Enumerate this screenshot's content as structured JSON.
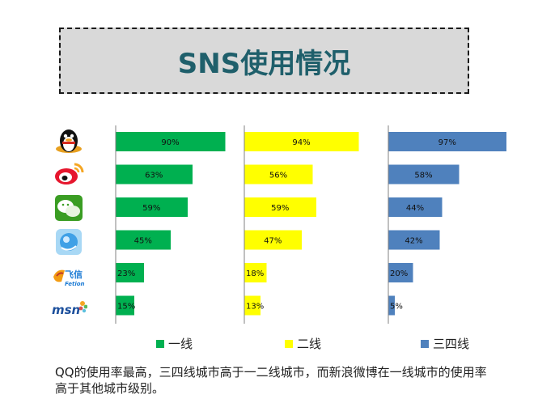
{
  "title": "SNS使用情况",
  "chart_data": {
    "type": "bar",
    "orientation": "horizontal",
    "categories": [
      "QQ",
      "新浪微博",
      "微信",
      "QQ空间",
      "飞信",
      "MSN"
    ],
    "series": [
      {
        "name": "一线",
        "color": "#00b050",
        "values": [
          90,
          63,
          59,
          45,
          23,
          15
        ]
      },
      {
        "name": "二线",
        "color": "#ffff00",
        "values": [
          94,
          56,
          59,
          47,
          18,
          13
        ]
      },
      {
        "name": "三四线",
        "color": "#4f81bd",
        "values": [
          97,
          58,
          44,
          42,
          20,
          5
        ]
      }
    ],
    "value_suffix": "%",
    "legend_position": "bottom",
    "grid": false
  },
  "icons": [
    "qq-icon",
    "weibo-icon",
    "wechat-icon",
    "qzone-icon",
    "fetion-icon",
    "msn-icon"
  ],
  "icon_text": {
    "fetion_cn": "飞信",
    "fetion_en": "Fetion",
    "msn": "msn"
  },
  "caption": "QQ的使用率最高，三四线城市高于一二线城市，而新浪微博在一线城市的使用率高于其他城市级别。"
}
